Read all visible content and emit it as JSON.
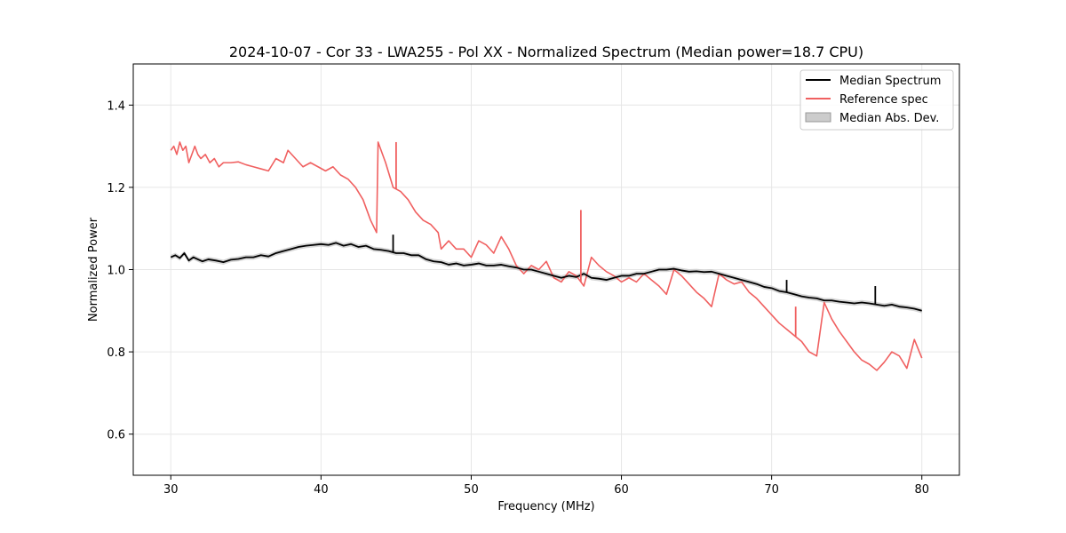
{
  "chart_data": {
    "type": "line",
    "title": "2024-10-07 - Cor 33 - LWA255 - Pol XX - Normalized Spectrum (Median power=18.7 CPU)",
    "xlabel": "Frequency (MHz)",
    "ylabel": "Normalized Power",
    "xlim": [
      27.5,
      82.5
    ],
    "ylim": [
      0.5,
      1.5
    ],
    "xticks": [
      30,
      40,
      50,
      60,
      70,
      80
    ],
    "yticks": [
      0.6,
      0.8,
      1.0,
      1.2,
      1.4
    ],
    "xtick_labels": [
      "30",
      "40",
      "50",
      "60",
      "70",
      "80"
    ],
    "ytick_labels": [
      "0.6",
      "0.8",
      "1.0",
      "1.2",
      "1.4"
    ],
    "grid": true,
    "legend_position": "top-right",
    "series": [
      {
        "name": "Median Spectrum",
        "color": "#000000",
        "x": [
          30.0,
          30.3,
          30.6,
          30.9,
          31.2,
          31.5,
          31.8,
          32.1,
          32.5,
          33.0,
          33.5,
          34.0,
          34.5,
          35.0,
          35.5,
          36.0,
          36.5,
          37.0,
          37.5,
          38.0,
          38.5,
          39.0,
          39.5,
          40.0,
          40.5,
          41.0,
          41.5,
          42.0,
          42.5,
          43.0,
          43.5,
          44.0,
          44.5,
          45.0,
          45.5,
          46.0,
          46.5,
          47.0,
          47.5,
          48.0,
          48.5,
          49.0,
          49.5,
          50.0,
          50.5,
          51.0,
          51.5,
          52.0,
          52.5,
          53.0,
          53.5,
          54.0,
          54.5,
          55.0,
          55.5,
          56.0,
          56.5,
          57.0,
          57.5,
          58.0,
          58.5,
          59.0,
          59.5,
          60.0,
          60.5,
          61.0,
          61.5,
          62.0,
          62.5,
          63.0,
          63.5,
          64.0,
          64.5,
          65.0,
          65.5,
          66.0,
          66.5,
          67.0,
          67.5,
          68.0,
          68.5,
          69.0,
          69.5,
          70.0,
          70.5,
          71.0,
          71.5,
          72.0,
          72.5,
          73.0,
          73.5,
          74.0,
          74.5,
          75.0,
          75.5,
          76.0,
          76.5,
          77.0,
          77.5,
          78.0,
          78.5,
          79.0,
          79.5,
          80.0
        ],
        "values": [
          1.03,
          1.035,
          1.028,
          1.04,
          1.022,
          1.03,
          1.025,
          1.02,
          1.025,
          1.022,
          1.018,
          1.024,
          1.026,
          1.03,
          1.03,
          1.035,
          1.032,
          1.04,
          1.045,
          1.05,
          1.055,
          1.058,
          1.06,
          1.062,
          1.06,
          1.065,
          1.058,
          1.062,
          1.055,
          1.058,
          1.05,
          1.048,
          1.045,
          1.04,
          1.04,
          1.035,
          1.035,
          1.025,
          1.02,
          1.018,
          1.012,
          1.015,
          1.01,
          1.012,
          1.015,
          1.01,
          1.01,
          1.012,
          1.008,
          1.005,
          1.0,
          1.0,
          0.995,
          0.99,
          0.985,
          0.98,
          0.985,
          0.982,
          0.99,
          0.98,
          0.978,
          0.975,
          0.98,
          0.985,
          0.985,
          0.99,
          0.99,
          0.995,
          1.0,
          1.0,
          1.002,
          0.998,
          0.995,
          0.996,
          0.994,
          0.995,
          0.99,
          0.985,
          0.98,
          0.975,
          0.97,
          0.965,
          0.958,
          0.955,
          0.948,
          0.945,
          0.94,
          0.935,
          0.932,
          0.93,
          0.925,
          0.925,
          0.922,
          0.92,
          0.918,
          0.92,
          0.918,
          0.915,
          0.912,
          0.915,
          0.91,
          0.908,
          0.905,
          0.9
        ]
      },
      {
        "name": "Reference spec",
        "color": "#f06060",
        "x": [
          30.0,
          30.2,
          30.4,
          30.6,
          30.8,
          31.0,
          31.2,
          31.4,
          31.6,
          31.8,
          32.0,
          32.3,
          32.6,
          32.9,
          33.2,
          33.5,
          34.0,
          34.5,
          35.0,
          35.5,
          36.0,
          36.5,
          37.0,
          37.5,
          37.8,
          38.3,
          38.8,
          39.3,
          39.8,
          40.3,
          40.8,
          41.3,
          41.8,
          42.3,
          42.8,
          43.3,
          43.7,
          43.8,
          44.3,
          44.8,
          45.3,
          45.8,
          46.3,
          46.8,
          47.3,
          47.8,
          48.0,
          48.5,
          49.0,
          49.5,
          50.0,
          50.5,
          51.0,
          51.5,
          52.0,
          52.5,
          53.0,
          53.5,
          54.0,
          54.5,
          55.0,
          55.5,
          56.0,
          56.5,
          57.0,
          57.5,
          58.0,
          58.5,
          59.0,
          59.5,
          60.0,
          60.5,
          61.0,
          61.5,
          62.0,
          62.5,
          63.0,
          63.5,
          64.0,
          64.5,
          65.0,
          65.5,
          66.0,
          66.5,
          67.0,
          67.5,
          68.0,
          68.5,
          69.0,
          69.5,
          70.0,
          70.5,
          71.0,
          71.5,
          72.0,
          72.5,
          73.0,
          73.5,
          74.0,
          74.5,
          75.0,
          75.5,
          76.0,
          76.5,
          77.0,
          77.5,
          78.0,
          78.5,
          79.0,
          79.5,
          80.0
        ],
        "values": [
          1.29,
          1.3,
          1.28,
          1.31,
          1.29,
          1.3,
          1.26,
          1.28,
          1.3,
          1.28,
          1.27,
          1.28,
          1.26,
          1.27,
          1.25,
          1.26,
          1.26,
          1.262,
          1.255,
          1.25,
          1.245,
          1.24,
          1.27,
          1.26,
          1.29,
          1.27,
          1.25,
          1.26,
          1.25,
          1.24,
          1.25,
          1.23,
          1.22,
          1.2,
          1.17,
          1.12,
          1.09,
          1.31,
          1.26,
          1.2,
          1.19,
          1.17,
          1.14,
          1.12,
          1.11,
          1.09,
          1.05,
          1.07,
          1.05,
          1.05,
          1.03,
          1.07,
          1.06,
          1.04,
          1.08,
          1.05,
          1.01,
          0.99,
          1.01,
          1.0,
          1.02,
          0.98,
          0.97,
          0.995,
          0.985,
          0.96,
          1.03,
          1.01,
          0.995,
          0.985,
          0.97,
          0.98,
          0.97,
          0.99,
          0.975,
          0.96,
          0.94,
          1.0,
          0.985,
          0.965,
          0.945,
          0.93,
          0.91,
          0.99,
          0.975,
          0.965,
          0.97,
          0.945,
          0.93,
          0.91,
          0.89,
          0.87,
          0.855,
          0.84,
          0.825,
          0.8,
          0.79,
          0.92,
          0.88,
          0.85,
          0.825,
          0.8,
          0.78,
          0.77,
          0.755,
          0.775,
          0.8,
          0.79,
          0.76,
          0.83,
          0.785
        ]
      }
    ],
    "spikes": [
      {
        "series": "Median Spectrum",
        "x": 44.8,
        "y": 1.085
      },
      {
        "series": "Median Spectrum",
        "x": 76.9,
        "y": 0.96
      },
      {
        "series": "Median Spectrum",
        "x": 71.0,
        "y": 0.975
      },
      {
        "series": "Reference spec",
        "x": 45.0,
        "y": 1.31
      },
      {
        "series": "Reference spec",
        "x": 57.3,
        "y": 1.145
      },
      {
        "series": "Reference spec",
        "x": 71.6,
        "y": 0.91
      }
    ],
    "mad_band": {
      "name": "Median Abs. Dev.",
      "color": "#cccccc",
      "halfwidth": 0.006
    }
  }
}
